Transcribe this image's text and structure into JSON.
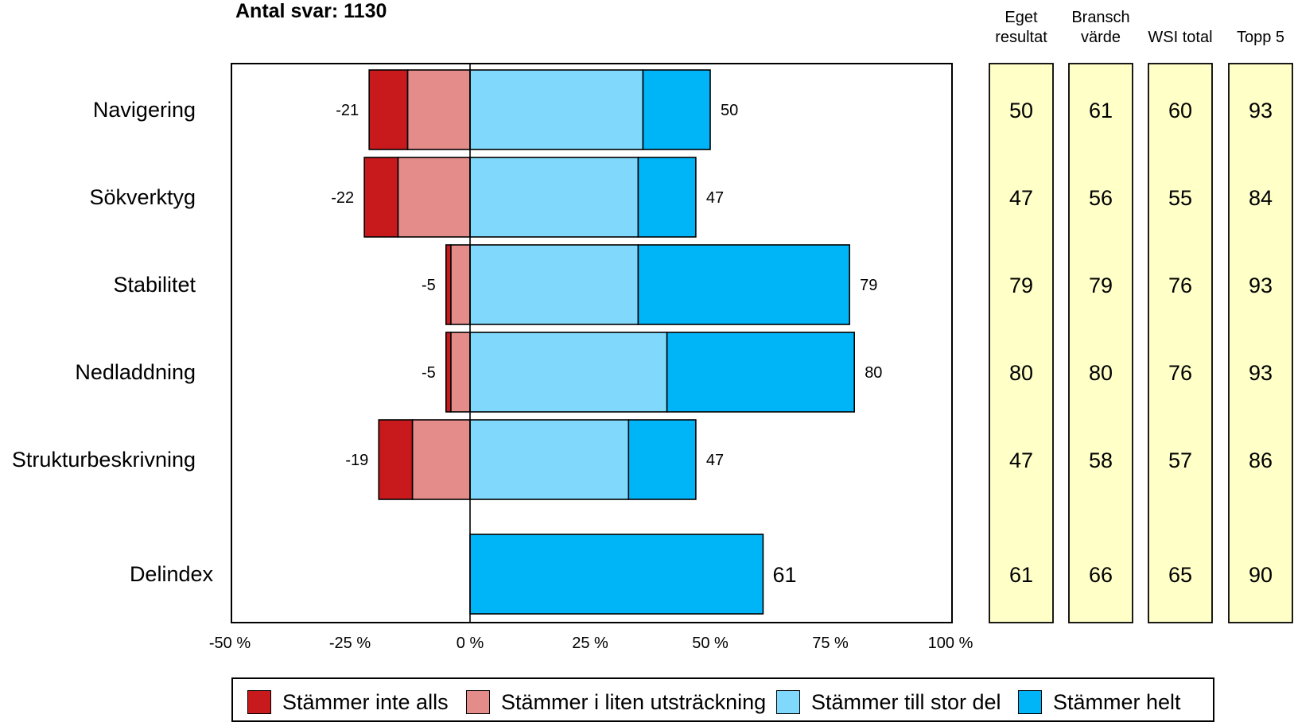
{
  "title": "Antal svar: 1130",
  "table_headers": [
    [
      "Eget",
      "resultat"
    ],
    [
      "Bransch",
      "värde"
    ],
    [
      "WSI total"
    ],
    [
      "Topp 5"
    ]
  ],
  "colors": {
    "stammer_inte_alls": "#C8191C",
    "stammer_i_liten": "#E48C8A",
    "stammer_till_stor": "#80D8FC",
    "stammer_helt": "#00B4F8",
    "table_bg": "#FFFFC8"
  },
  "chart_data": {
    "type": "bar",
    "orientation": "horizontal-diverging-stacked",
    "categories": [
      "Navigering",
      "Sökverktyg",
      "Stabilitet",
      "Nedladdning",
      "Strukturbeskrivning",
      "Delindex"
    ],
    "series": [
      {
        "name": "Stämmer inte alls",
        "values": [
          -8,
          -7,
          -1,
          -1,
          -7,
          0
        ],
        "color": "#C8191C"
      },
      {
        "name": "Stämmer i liten utsträckning",
        "values": [
          -13,
          -15,
          -4,
          -4,
          -12,
          0
        ],
        "color": "#E48C8A"
      },
      {
        "name": "Stämmer till stor del",
        "values": [
          36,
          35,
          35,
          41,
          33,
          0
        ],
        "color": "#80D8FC"
      },
      {
        "name": "Stämmer helt",
        "values": [
          14,
          12,
          44,
          39,
          14,
          61
        ],
        "color": "#00B4F8"
      }
    ],
    "negative_labels": [
      "-21",
      "-22",
      "-5",
      "-5",
      "-19",
      ""
    ],
    "positive_labels": [
      "50",
      "47",
      "79",
      "80",
      "47",
      "61"
    ],
    "xlim": [
      -50,
      100
    ],
    "xticks": [
      "-50 %",
      "-25 %",
      "0 %",
      "25 %",
      "50 %",
      "75 %",
      "100 %"
    ],
    "table": [
      [
        "50",
        "61",
        "60",
        "93"
      ],
      [
        "47",
        "56",
        "55",
        "84"
      ],
      [
        "79",
        "79",
        "76",
        "93"
      ],
      [
        "80",
        "80",
        "76",
        "93"
      ],
      [
        "47",
        "58",
        "57",
        "86"
      ],
      [
        "61",
        "66",
        "65",
        "90"
      ]
    ],
    "legend_position": "bottom",
    "grid": false
  }
}
